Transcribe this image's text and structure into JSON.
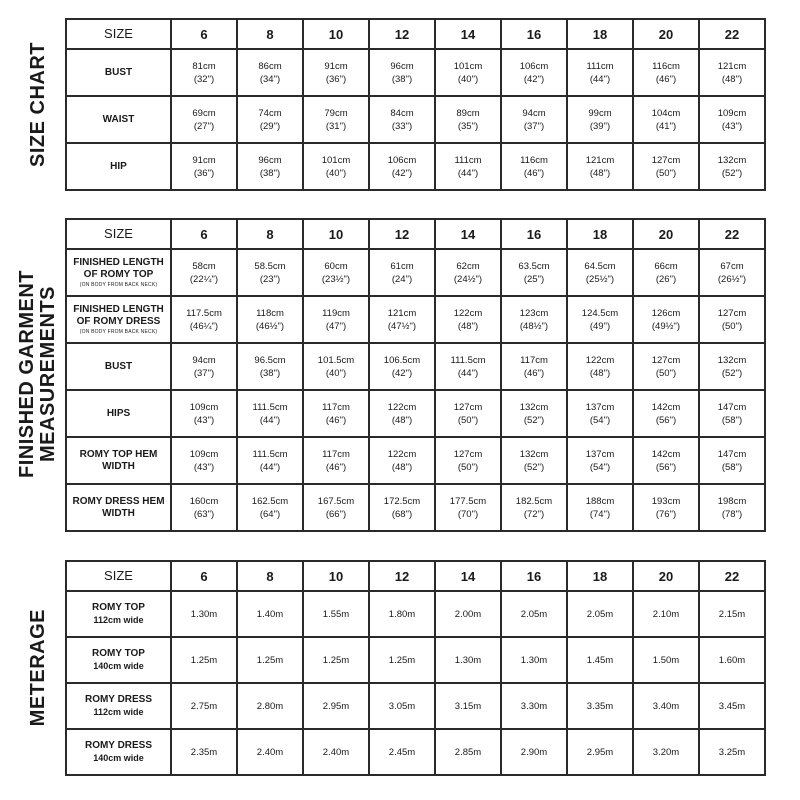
{
  "sizes": [
    "6",
    "8",
    "10",
    "12",
    "14",
    "16",
    "18",
    "20",
    "22"
  ],
  "size_chart": {
    "title": "SIZE CHART",
    "header": "SIZE",
    "rows": [
      {
        "label": "BUST",
        "cells": [
          [
            "81cm",
            "(32\")"
          ],
          [
            "86cm",
            "(34\")"
          ],
          [
            "91cm",
            "(36\")"
          ],
          [
            "96cm",
            "(38\")"
          ],
          [
            "101cm",
            "(40\")"
          ],
          [
            "106cm",
            "(42\")"
          ],
          [
            "111cm",
            "(44\")"
          ],
          [
            "116cm",
            "(46\")"
          ],
          [
            "121cm",
            "(48\")"
          ]
        ]
      },
      {
        "label": "WAIST",
        "cells": [
          [
            "69cm",
            "(27\")"
          ],
          [
            "74cm",
            "(29\")"
          ],
          [
            "79cm",
            "(31\")"
          ],
          [
            "84cm",
            "(33\")"
          ],
          [
            "89cm",
            "(35\")"
          ],
          [
            "94cm",
            "(37\")"
          ],
          [
            "99cm",
            "(39\")"
          ],
          [
            "104cm",
            "(41\")"
          ],
          [
            "109cm",
            "(43\")"
          ]
        ]
      },
      {
        "label": "HIP",
        "cells": [
          [
            "91cm",
            "(36\")"
          ],
          [
            "96cm",
            "(38\")"
          ],
          [
            "101cm",
            "(40\")"
          ],
          [
            "106cm",
            "(42\")"
          ],
          [
            "111cm",
            "(44\")"
          ],
          [
            "116cm",
            "(46\")"
          ],
          [
            "121cm",
            "(48\")"
          ],
          [
            "127cm",
            "(50\")"
          ],
          [
            "132cm",
            "(52\")"
          ]
        ]
      }
    ]
  },
  "finished": {
    "title_line1": "FINISHED GARMENT",
    "title_line2": "MEASUREMENTS",
    "header": "SIZE",
    "rows": [
      {
        "label": "FINISHED LENGTH OF ROMY TOP",
        "note": "(ON BODY FROM BACK NECK)",
        "cells": [
          [
            "58cm",
            "(22¼\")"
          ],
          [
            "58.5cm",
            "(23\")"
          ],
          [
            "60cm",
            "(23½\")"
          ],
          [
            "61cm",
            "(24\")"
          ],
          [
            "62cm",
            "(24½\")"
          ],
          [
            "63.5cm",
            "(25\")"
          ],
          [
            "64.5cm",
            "(25½\")"
          ],
          [
            "66cm",
            "(26\")"
          ],
          [
            "67cm",
            "(26½\")"
          ]
        ]
      },
      {
        "label": "FINISHED LENGTH OF ROMY DRESS",
        "note": "(ON BODY FROM BACK NECK)",
        "cells": [
          [
            "117.5cm",
            "(46¼\")"
          ],
          [
            "118cm",
            "(46½\")"
          ],
          [
            "119cm",
            "(47\")"
          ],
          [
            "121cm",
            "(47½\")"
          ],
          [
            "122cm",
            "(48\")"
          ],
          [
            "123cm",
            "(48½\")"
          ],
          [
            "124.5cm",
            "(49\")"
          ],
          [
            "126cm",
            "(49½\")"
          ],
          [
            "127cm",
            "(50\")"
          ]
        ]
      },
      {
        "label": "BUST",
        "cells": [
          [
            "94cm",
            "(37\")"
          ],
          [
            "96.5cm",
            "(38\")"
          ],
          [
            "101.5cm",
            "(40\")"
          ],
          [
            "106.5cm",
            "(42\")"
          ],
          [
            "111.5cm",
            "(44\")"
          ],
          [
            "117cm",
            "(46\")"
          ],
          [
            "122cm",
            "(48\")"
          ],
          [
            "127cm",
            "(50\")"
          ],
          [
            "132cm",
            "(52\")"
          ]
        ]
      },
      {
        "label": "HIPS",
        "cells": [
          [
            "109cm",
            "(43\")"
          ],
          [
            "111.5cm",
            "(44\")"
          ],
          [
            "117cm",
            "(46\")"
          ],
          [
            "122cm",
            "(48\")"
          ],
          [
            "127cm",
            "(50\")"
          ],
          [
            "132cm",
            "(52\")"
          ],
          [
            "137cm",
            "(54\")"
          ],
          [
            "142cm",
            "(56\")"
          ],
          [
            "147cm",
            "(58\")"
          ]
        ]
      },
      {
        "label": "ROMY TOP HEM WIDTH",
        "cells": [
          [
            "109cm",
            "(43\")"
          ],
          [
            "111.5cm",
            "(44\")"
          ],
          [
            "117cm",
            "(46\")"
          ],
          [
            "122cm",
            "(48\")"
          ],
          [
            "127cm",
            "(50\")"
          ],
          [
            "132cm",
            "(52\")"
          ],
          [
            "137cm",
            "(54\")"
          ],
          [
            "142cm",
            "(56\")"
          ],
          [
            "147cm",
            "(58\")"
          ]
        ]
      },
      {
        "label": "ROMY DRESS HEM WIDTH",
        "cells": [
          [
            "160cm",
            "(63\")"
          ],
          [
            "162.5cm",
            "(64\")"
          ],
          [
            "167.5cm",
            "(66\")"
          ],
          [
            "172.5cm",
            "(68\")"
          ],
          [
            "177.5cm",
            "(70\")"
          ],
          [
            "182.5cm",
            "(72\")"
          ],
          [
            "188cm",
            "(74\")"
          ],
          [
            "193cm",
            "(76\")"
          ],
          [
            "198cm",
            "(78\")"
          ]
        ]
      }
    ]
  },
  "meterage": {
    "title": "METERAGE",
    "header": "SIZE",
    "rows": [
      {
        "label": "ROMY TOP",
        "width": "112cm wide",
        "cells": [
          "1.30m",
          "1.40m",
          "1.55m",
          "1.80m",
          "2.00m",
          "2.05m",
          "2.05m",
          "2.10m",
          "2.15m"
        ]
      },
      {
        "label": "ROMY TOP",
        "width": "140cm wide",
        "cells": [
          "1.25m",
          "1.25m",
          "1.25m",
          "1.25m",
          "1.30m",
          "1.30m",
          "1.45m",
          "1.50m",
          "1.60m"
        ]
      },
      {
        "label": "ROMY DRESS",
        "width": "112cm wide",
        "cells": [
          "2.75m",
          "2.80m",
          "2.95m",
          "3.05m",
          "3.15m",
          "3.30m",
          "3.35m",
          "3.40m",
          "3.45m"
        ]
      },
      {
        "label": "ROMY DRESS",
        "width": "140cm wide",
        "cells": [
          "2.35m",
          "2.40m",
          "2.40m",
          "2.45m",
          "2.85m",
          "2.90m",
          "2.95m",
          "3.20m",
          "3.25m"
        ]
      }
    ]
  }
}
